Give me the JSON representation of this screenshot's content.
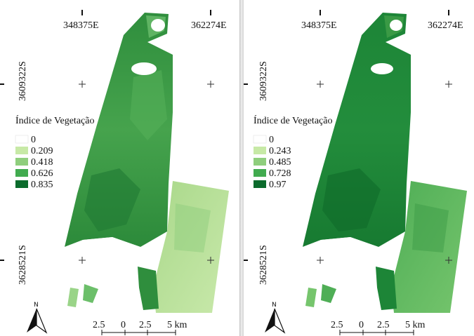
{
  "maps": [
    {
      "coords": {
        "x_left": "348375E",
        "x_right": "362274E",
        "y_top": "3609322S",
        "y_bottom": "3628521S"
      },
      "legend": {
        "title": "Índice de Vegetação",
        "classes": [
          {
            "label": "0",
            "color": "#ffffff"
          },
          {
            "label": "0.209",
            "color": "#c7e9a6"
          },
          {
            "label": "0.418",
            "color": "#8fce7d"
          },
          {
            "label": "0.626",
            "color": "#41ab4f"
          },
          {
            "label": "0.835",
            "color": "#0b6b2c"
          }
        ]
      },
      "scale": {
        "labels": [
          "2.5",
          "0",
          "2.5",
          "5 km"
        ]
      },
      "north_label": "N"
    },
    {
      "coords": {
        "x_left": "348375E",
        "x_right": "362274E",
        "y_top": "3609322S",
        "y_bottom": "3628521S"
      },
      "legend": {
        "title": "Índice de Vegetação",
        "classes": [
          {
            "label": "0",
            "color": "#ffffff"
          },
          {
            "label": "0.243",
            "color": "#c7e9a6"
          },
          {
            "label": "0.485",
            "color": "#8fce7d"
          },
          {
            "label": "0.728",
            "color": "#41ab4f"
          },
          {
            "label": "0.97",
            "color": "#0b6b2c"
          }
        ]
      },
      "scale": {
        "labels": [
          "2.5",
          "0",
          "2.5",
          "5 km"
        ]
      },
      "north_label": "N"
    }
  ],
  "colors": {
    "left_main": "#3a9a45",
    "left_light": "#b9e094",
    "right_main": "#1f8a3a",
    "right_light": "#6fc06a"
  }
}
